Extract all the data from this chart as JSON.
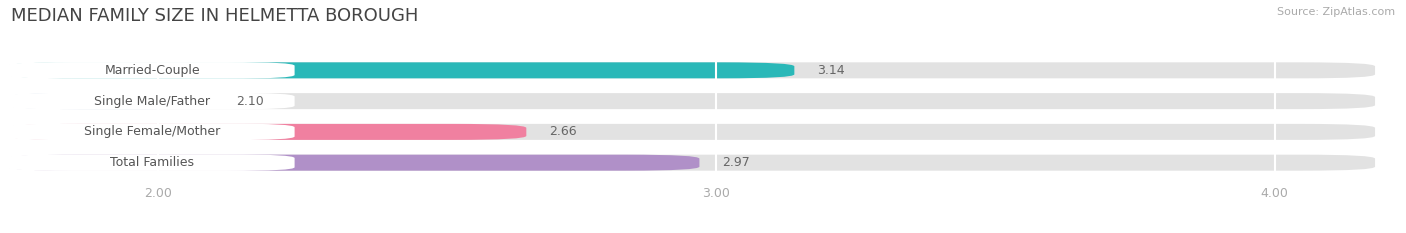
{
  "title": "MEDIAN FAMILY SIZE IN HELMETTA BOROUGH",
  "source": "Source: ZipAtlas.com",
  "categories": [
    "Married-Couple",
    "Single Male/Father",
    "Single Female/Mother",
    "Total Families"
  ],
  "values": [
    3.14,
    2.1,
    2.66,
    2.97
  ],
  "bar_colors": [
    "#2ab8b8",
    "#aac4e8",
    "#f080a0",
    "#b090c8"
  ],
  "xlim_min": 1.73,
  "xlim_max": 4.18,
  "xticks": [
    2.0,
    3.0,
    4.0
  ],
  "xtick_labels": [
    "2.00",
    "3.00",
    "4.00"
  ],
  "background_color": "#ffffff",
  "bar_bg_color": "#e8e8e8",
  "title_fontsize": 13,
  "label_fontsize": 9,
  "value_fontsize": 9,
  "tick_fontsize": 9,
  "bar_height": 0.52,
  "bar_gap": 0.48
}
